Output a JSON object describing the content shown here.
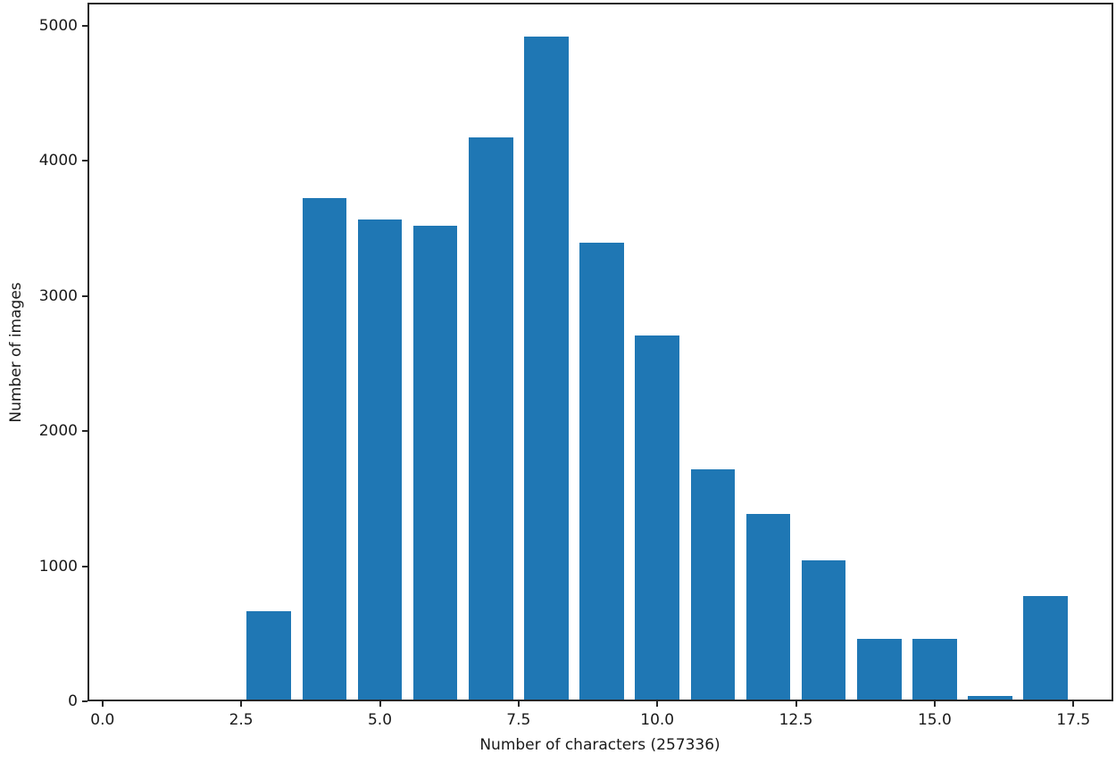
{
  "chart_data": {
    "type": "bar",
    "title": "",
    "xlabel": "Number of characters (257336)",
    "ylabel": "Number of images",
    "x": [
      3,
      4,
      5,
      6,
      7,
      8,
      9,
      10,
      11,
      12,
      13,
      14,
      15,
      16,
      17
    ],
    "values": [
      670,
      3725,
      3570,
      3520,
      4175,
      4920,
      3395,
      2710,
      1720,
      1390,
      1045,
      460,
      460,
      40,
      780
    ],
    "bar_width": 0.8,
    "bar_color": "#1f77b4",
    "spine_color": "#262626",
    "xlim": [
      -0.27,
      18.22
    ],
    "ylim": [
      0,
      5172
    ],
    "xticks": [
      0.0,
      2.5,
      5.0,
      7.5,
      10.0,
      12.5,
      15.0,
      17.5
    ],
    "xtick_labels": [
      "0.0",
      "2.5",
      "5.0",
      "7.5",
      "10.0",
      "12.5",
      "15.0",
      "17.5"
    ],
    "yticks": [
      0,
      1000,
      2000,
      3000,
      4000,
      5000
    ],
    "ytick_labels": [
      "0",
      "1000",
      "2000",
      "3000",
      "4000",
      "5000"
    ],
    "grid": false,
    "legend": null
  }
}
